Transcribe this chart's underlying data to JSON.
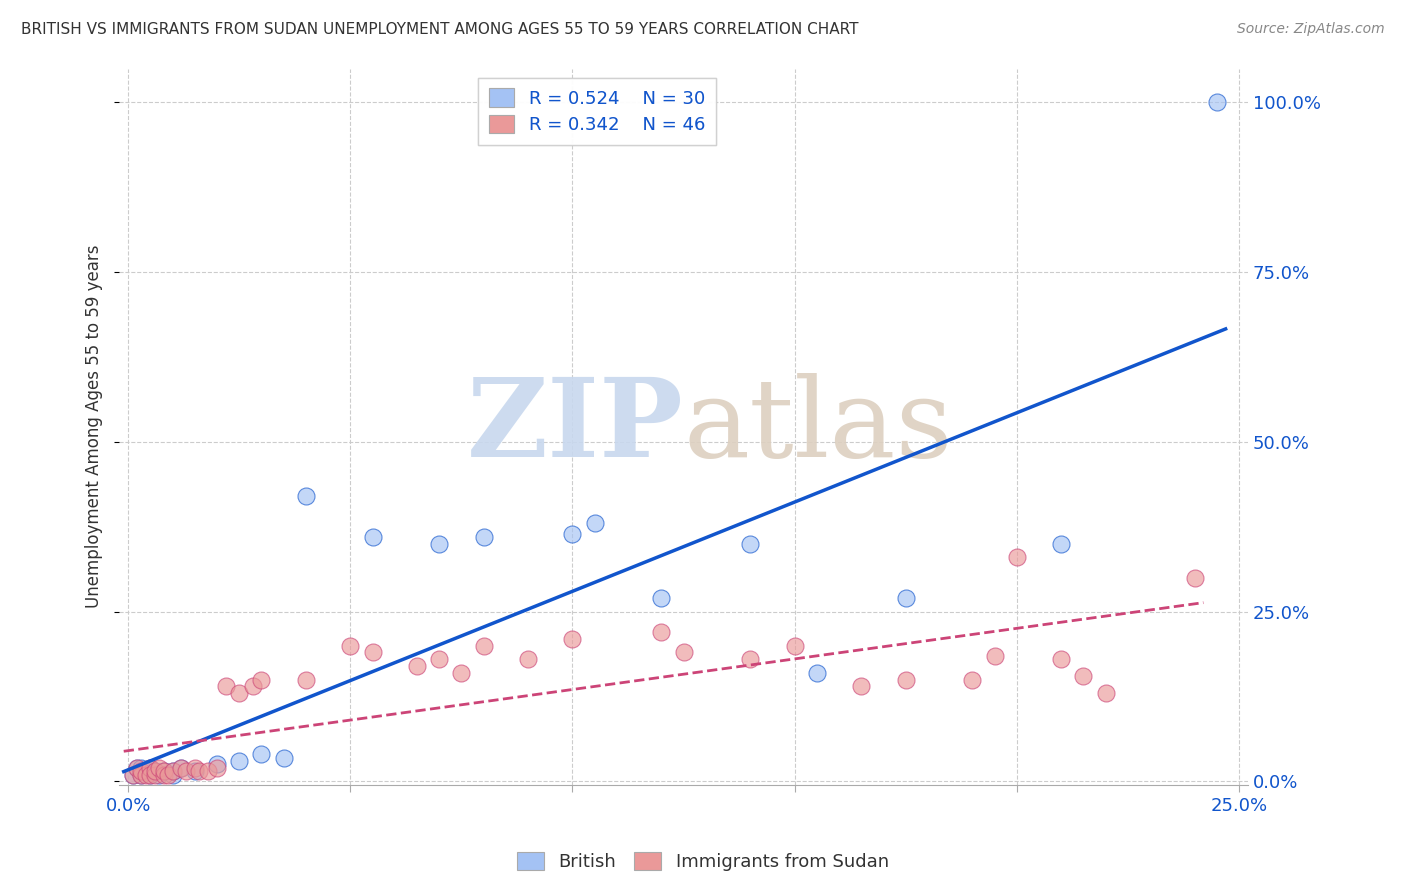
{
  "title": "BRITISH VS IMMIGRANTS FROM SUDAN UNEMPLOYMENT AMONG AGES 55 TO 59 YEARS CORRELATION CHART",
  "source": "Source: ZipAtlas.com",
  "ylabel": "Unemployment Among Ages 55 to 59 years",
  "xlim": [
    -0.002,
    0.252
  ],
  "ylim": [
    -0.005,
    1.05
  ],
  "xticks": [
    0.0,
    0.05,
    0.1,
    0.15,
    0.2,
    0.25
  ],
  "xtick_labels": [
    "0.0%",
    "",
    "",
    "",
    "",
    "25.0%"
  ],
  "yticks_right": [
    0.0,
    0.25,
    0.5,
    0.75,
    1.0
  ],
  "ytick_labels_right": [
    "0.0%",
    "25.0%",
    "50.0%",
    "75.0%",
    "100.0%"
  ],
  "british_color": "#a4c2f4",
  "sudan_color": "#ea9999",
  "british_line_color": "#1155cc",
  "sudan_line_color": "#cc4477",
  "legend_R_british": "R = 0.524",
  "legend_N_british": "N = 30",
  "legend_R_sudan": "R = 0.342",
  "legend_N_sudan": "N = 46",
  "british_x": [
    0.001,
    0.002,
    0.003,
    0.003,
    0.004,
    0.005,
    0.005,
    0.006,
    0.007,
    0.008,
    0.01,
    0.01,
    0.012,
    0.015,
    0.02,
    0.025,
    0.03,
    0.035,
    0.04,
    0.055,
    0.07,
    0.08,
    0.1,
    0.105,
    0.12,
    0.14,
    0.155,
    0.175,
    0.21,
    0.245
  ],
  "british_y": [
    0.01,
    0.02,
    0.01,
    0.02,
    0.015,
    0.01,
    0.02,
    0.015,
    0.01,
    0.015,
    0.01,
    0.015,
    0.02,
    0.015,
    0.025,
    0.03,
    0.04,
    0.035,
    0.42,
    0.36,
    0.35,
    0.36,
    0.365,
    0.38,
    0.27,
    0.35,
    0.16,
    0.27,
    0.35,
    1.0
  ],
  "sudan_x": [
    0.001,
    0.002,
    0.003,
    0.003,
    0.004,
    0.005,
    0.005,
    0.006,
    0.006,
    0.007,
    0.008,
    0.008,
    0.009,
    0.01,
    0.012,
    0.013,
    0.015,
    0.016,
    0.018,
    0.02,
    0.022,
    0.025,
    0.028,
    0.03,
    0.04,
    0.05,
    0.055,
    0.065,
    0.07,
    0.075,
    0.08,
    0.09,
    0.1,
    0.12,
    0.125,
    0.14,
    0.15,
    0.165,
    0.175,
    0.19,
    0.195,
    0.2,
    0.21,
    0.215,
    0.22,
    0.24
  ],
  "sudan_y": [
    0.01,
    0.02,
    0.01,
    0.015,
    0.01,
    0.02,
    0.01,
    0.01,
    0.015,
    0.02,
    0.01,
    0.015,
    0.01,
    0.015,
    0.02,
    0.015,
    0.02,
    0.015,
    0.015,
    0.02,
    0.14,
    0.13,
    0.14,
    0.15,
    0.15,
    0.2,
    0.19,
    0.17,
    0.18,
    0.16,
    0.2,
    0.18,
    0.21,
    0.22,
    0.19,
    0.18,
    0.2,
    0.14,
    0.15,
    0.15,
    0.185,
    0.33,
    0.18,
    0.155,
    0.13,
    0.3
  ]
}
